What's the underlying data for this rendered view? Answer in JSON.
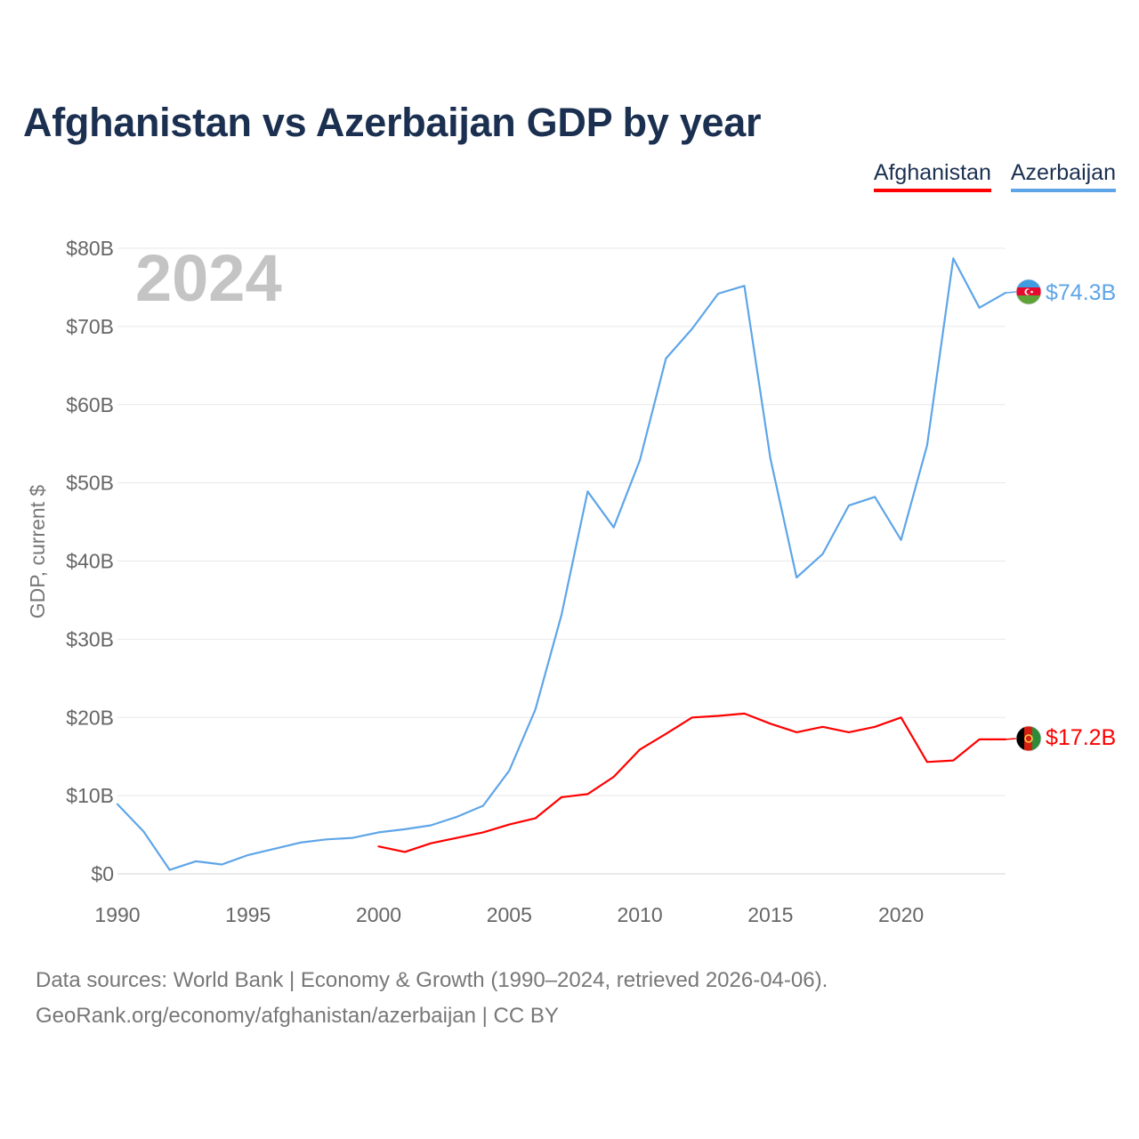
{
  "title": "Afghanistan vs Azerbaijan GDP by year",
  "legend": [
    {
      "name": "Afghanistan",
      "color": "#ff0000"
    },
    {
      "name": "Azerbaijan",
      "color": "#5ea5e8"
    }
  ],
  "chart_data": {
    "type": "line",
    "title": "Afghanistan vs Azerbaijan GDP by year",
    "ylabel": "GDP, current $",
    "xlabel": "",
    "year_watermark": "2024",
    "xlim": [
      1990,
      2024
    ],
    "ylim": [
      0,
      80
    ],
    "x_ticks": [
      1990,
      1995,
      2000,
      2005,
      2010,
      2015,
      2020
    ],
    "x_tick_labels": [
      "1990",
      "1995",
      "2000",
      "2005",
      "2010",
      "2015",
      "2020"
    ],
    "y_ticks": [
      0,
      10,
      20,
      30,
      40,
      50,
      60,
      70,
      80
    ],
    "y_tick_labels": [
      "$0",
      "$10B",
      "$20B",
      "$30B",
      "$40B",
      "$50B",
      "$60B",
      "$70B",
      "$80B"
    ],
    "grid": true,
    "series": [
      {
        "name": "Azerbaijan",
        "color": "#5ea5e8",
        "x": [
          1990,
          1991,
          1992,
          1993,
          1994,
          1995,
          1996,
          1997,
          1998,
          1999,
          2000,
          2001,
          2002,
          2003,
          2004,
          2005,
          2006,
          2007,
          2008,
          2009,
          2010,
          2011,
          2012,
          2013,
          2014,
          2015,
          2016,
          2017,
          2018,
          2019,
          2020,
          2021,
          2022,
          2023,
          2024
        ],
        "values": [
          8.9,
          5.4,
          0.5,
          1.6,
          1.2,
          2.4,
          3.2,
          4.0,
          4.4,
          4.6,
          5.3,
          5.7,
          6.2,
          7.3,
          8.7,
          13.2,
          21.0,
          33.1,
          48.9,
          44.3,
          52.9,
          65.9,
          69.7,
          74.2,
          75.2,
          53.1,
          37.9,
          40.9,
          47.1,
          48.2,
          42.7,
          54.8,
          78.7,
          72.4,
          74.3
        ],
        "end_label": "$74.3B"
      },
      {
        "name": "Afghanistan",
        "color": "#ff0000",
        "x": [
          2000,
          2001,
          2002,
          2003,
          2004,
          2005,
          2006,
          2007,
          2008,
          2009,
          2010,
          2011,
          2012,
          2013,
          2014,
          2015,
          2016,
          2017,
          2018,
          2019,
          2020,
          2021,
          2022,
          2023,
          2024
        ],
        "values": [
          3.5,
          2.8,
          3.9,
          4.6,
          5.3,
          6.3,
          7.1,
          9.8,
          10.2,
          12.4,
          15.9,
          17.9,
          20.0,
          20.2,
          20.5,
          19.2,
          18.1,
          18.8,
          18.1,
          18.8,
          20.0,
          14.3,
          14.5,
          17.2,
          17.2
        ],
        "end_label": "$17.2B"
      }
    ]
  },
  "source": {
    "line1": "Data sources: World Bank | Economy & Growth (1990–2024, retrieved 2026-04-06).",
    "line2": "GeoRank.org/economy/afghanistan/azerbaijan | CC BY"
  }
}
